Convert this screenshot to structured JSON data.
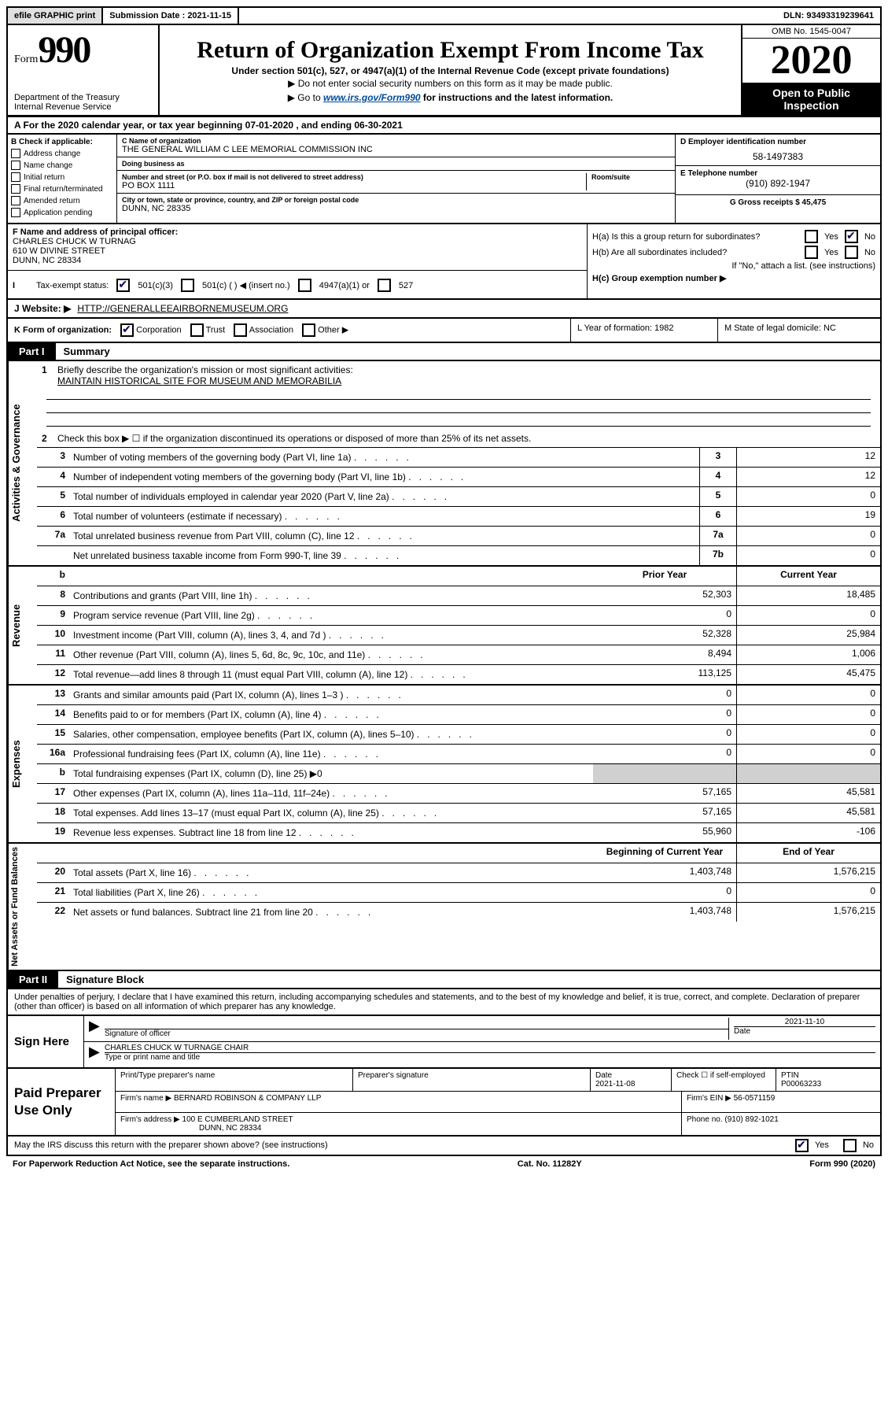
{
  "topbar": {
    "efile": "efile GRAPHIC print",
    "submission_label": "Submission Date : 2021-11-15",
    "dln_label": "DLN: 93493319239641"
  },
  "header": {
    "form_word": "Form",
    "form_num": "990",
    "dept": "Department of the Treasury\nInternal Revenue Service",
    "title": "Return of Organization Exempt From Income Tax",
    "subtitle": "Under section 501(c), 527, or 4947(a)(1) of the Internal Revenue Code (except private foundations)",
    "note1": "▶ Do not enter social security numbers on this form as it may be made public.",
    "note2_pre": "▶ Go to ",
    "note2_link": "www.irs.gov/Form990",
    "note2_post": " for instructions and the latest information.",
    "omb": "OMB No. 1545-0047",
    "year": "2020",
    "open1": "Open to Public",
    "open2": "Inspection"
  },
  "period": "A For the 2020 calendar year, or tax year beginning 07-01-2020     , and ending 06-30-2021",
  "B": {
    "label": "B Check if applicable:",
    "items": [
      "Address change",
      "Name change",
      "Initial return",
      "Final return/terminated",
      "Amended return",
      "Application pending"
    ]
  },
  "C": {
    "name_label": "C Name of organization",
    "name": "THE GENERAL WILLIAM C LEE MEMORIAL COMMISSION INC",
    "dba_label": "Doing business as",
    "dba": "",
    "street_label": "Number and street (or P.O. box if mail is not delivered to street address)",
    "street": "PO BOX 1111",
    "room_label": "Room/suite",
    "room": "",
    "city_label": "City or town, state or province, country, and ZIP or foreign postal code",
    "city": "DUNN, NC  28335"
  },
  "D": {
    "label": "D Employer identification number",
    "val": "58-1497383"
  },
  "E": {
    "label": "E Telephone number",
    "val": "(910) 892-1947"
  },
  "G": {
    "label": "G Gross receipts $ 45,475"
  },
  "F": {
    "label": "F  Name and address of principal officer:",
    "name": "CHARLES CHUCK W TURNAG",
    "addr1": "610 W DIVINE STREET",
    "addr2": "DUNN, NC  28334",
    "status_label": "Tax-exempt status:",
    "status_501c3": "501(c)(3)",
    "status_501c": "501(c) (   ) ◀ (insert no.)",
    "status_4947": "4947(a)(1) or",
    "status_527": "527"
  },
  "H": {
    "a_label": "H(a)  Is this a group return for subordinates?",
    "a_yes": "Yes",
    "a_no": "No",
    "b_label": "H(b)  Are all subordinates included?",
    "b_yes": "Yes",
    "b_no": "No",
    "b_note": "If \"No,\" attach a list. (see instructions)",
    "c_label": "H(c)  Group exemption number ▶"
  },
  "I": {
    "label": "I",
    "text": "Tax-exempt status:"
  },
  "J": {
    "label": "J   Website: ▶",
    "val": "HTTP://GENERALLEEAIRBORNEMUSEUM.ORG"
  },
  "K": {
    "label": "K Form of organization:",
    "corp": "Corporation",
    "trust": "Trust",
    "assoc": "Association",
    "other": "Other ▶"
  },
  "L": {
    "label": "L Year of formation: 1982"
  },
  "M": {
    "label": "M State of legal domicile: NC"
  },
  "part1": {
    "tab": "Part I",
    "title": "Summary",
    "q1_label": "1",
    "q1_text": "Briefly describe the organization's mission or most significant activities:",
    "q1_val": "MAINTAIN HISTORICAL SITE FOR MUSEUM AND MEMORABILIA",
    "q2_label": "2",
    "q2_text": "Check this box ▶ ☐  if the organization discontinued its operations or disposed of more than 25% of its net assets.",
    "side1": "Activities & Governance",
    "side2": "Revenue",
    "side3": "Expenses",
    "side4": "Net Assets or Fund Balances",
    "rows_gov": [
      {
        "n": "3",
        "desc": "Number of voting members of the governing body (Part VI, line 1a)",
        "ln": "3",
        "curr": "12"
      },
      {
        "n": "4",
        "desc": "Number of independent voting members of the governing body (Part VI, line 1b)",
        "ln": "4",
        "curr": "12"
      },
      {
        "n": "5",
        "desc": "Total number of individuals employed in calendar year 2020 (Part V, line 2a)",
        "ln": "5",
        "curr": "0"
      },
      {
        "n": "6",
        "desc": "Total number of volunteers (estimate if necessary)",
        "ln": "6",
        "curr": "19"
      },
      {
        "n": "7a",
        "desc": "Total unrelated business revenue from Part VIII, column (C), line 12",
        "ln": "7a",
        "curr": "0"
      },
      {
        "n": "",
        "desc": "Net unrelated business taxable income from Form 990-T, line 39",
        "ln": "7b",
        "curr": "0"
      }
    ],
    "hdr_b": "b",
    "hdr_prior": "Prior Year",
    "hdr_curr": "Current Year",
    "rows_rev": [
      {
        "n": "8",
        "desc": "Contributions and grants (Part VIII, line 1h)",
        "prior": "52,303",
        "curr": "18,485"
      },
      {
        "n": "9",
        "desc": "Program service revenue (Part VIII, line 2g)",
        "prior": "0",
        "curr": "0"
      },
      {
        "n": "10",
        "desc": "Investment income (Part VIII, column (A), lines 3, 4, and 7d )",
        "prior": "52,328",
        "curr": "25,984"
      },
      {
        "n": "11",
        "desc": "Other revenue (Part VIII, column (A), lines 5, 6d, 8c, 9c, 10c, and 11e)",
        "prior": "8,494",
        "curr": "1,006"
      },
      {
        "n": "12",
        "desc": "Total revenue—add lines 8 through 11 (must equal Part VIII, column (A), line 12)",
        "prior": "113,125",
        "curr": "45,475"
      }
    ],
    "rows_exp": [
      {
        "n": "13",
        "desc": "Grants and similar amounts paid (Part IX, column (A), lines 1–3 )",
        "prior": "0",
        "curr": "0"
      },
      {
        "n": "14",
        "desc": "Benefits paid to or for members (Part IX, column (A), line 4)",
        "prior": "0",
        "curr": "0"
      },
      {
        "n": "15",
        "desc": "Salaries, other compensation, employee benefits (Part IX, column (A), lines 5–10)",
        "prior": "0",
        "curr": "0"
      },
      {
        "n": "16a",
        "desc": "Professional fundraising fees (Part IX, column (A), line 11e)",
        "prior": "0",
        "curr": "0"
      },
      {
        "n": "b",
        "desc": "Total fundraising expenses (Part IX, column (D), line 25) ▶0",
        "prior": "",
        "curr": "",
        "shaded": true
      },
      {
        "n": "17",
        "desc": "Other expenses (Part IX, column (A), lines 11a–11d, 11f–24e)",
        "prior": "57,165",
        "curr": "45,581"
      },
      {
        "n": "18",
        "desc": "Total expenses. Add lines 13–17 (must equal Part IX, column (A), line 25)",
        "prior": "57,165",
        "curr": "45,581"
      },
      {
        "n": "19",
        "desc": "Revenue less expenses. Subtract line 18 from line 12",
        "prior": "55,960",
        "curr": "-106"
      }
    ],
    "hdr_begin": "Beginning of Current Year",
    "hdr_end": "End of Year",
    "rows_net": [
      {
        "n": "20",
        "desc": "Total assets (Part X, line 16)",
        "prior": "1,403,748",
        "curr": "1,576,215"
      },
      {
        "n": "21",
        "desc": "Total liabilities (Part X, line 26)",
        "prior": "0",
        "curr": "0"
      },
      {
        "n": "22",
        "desc": "Net assets or fund balances. Subtract line 21 from line 20",
        "prior": "1,403,748",
        "curr": "1,576,215"
      }
    ]
  },
  "part2": {
    "tab": "Part II",
    "title": "Signature Block",
    "declaration": "Under penalties of perjury, I declare that I have examined this return, including accompanying schedules and statements, and to the best of my knowledge and belief, it is true, correct, and complete. Declaration of preparer (other than officer) is based on all information of which preparer has any knowledge.",
    "sign_here": "Sign Here",
    "sig_label": "Signature of officer",
    "sig_date": "2021-11-10",
    "sig_date_label": "Date",
    "name_title": "CHARLES CHUCK W TURNAGE  CHAIR",
    "name_title_label": "Type or print name and title",
    "paid": "Paid Preparer Use Only",
    "prep_name_label": "Print/Type preparer's name",
    "prep_name": "",
    "prep_sig_label": "Preparer's signature",
    "prep_date_label": "Date",
    "prep_date": "2021-11-08",
    "check_label": "Check ☐ if self-employed",
    "ptin_label": "PTIN",
    "ptin": "P00063233",
    "firm_name_label": "Firm's name      ▶",
    "firm_name": "BERNARD ROBINSON & COMPANY LLP",
    "firm_ein_label": "Firm's EIN ▶",
    "firm_ein": "56-0571159",
    "firm_addr_label": "Firm's address ▶",
    "firm_addr1": "100 E CUMBERLAND STREET",
    "firm_addr2": "DUNN, NC  28334",
    "phone_label": "Phone no.",
    "phone": "(910) 892-1021",
    "discuss": "May the IRS discuss this return with the preparer shown above? (see instructions)",
    "discuss_yes": "Yes",
    "discuss_no": "No"
  },
  "footer": {
    "left": "For Paperwork Reduction Act Notice, see the separate instructions.",
    "mid": "Cat. No. 11282Y",
    "right": "Form 990 (2020)"
  },
  "colors": {
    "link": "#004b99",
    "black": "#000000",
    "shade": "#d0d0d0"
  }
}
